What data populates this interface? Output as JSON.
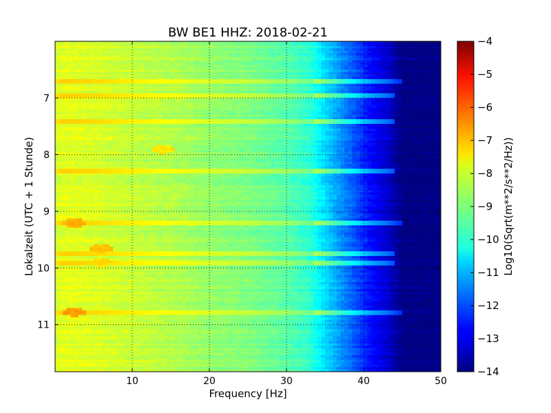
{
  "chart_data": {
    "type": "heatmap",
    "title": "BW BE1 HHZ: 2018-02-21",
    "xlabel": "Frequency [Hz]",
    "ylabel": "Lokalzeit (UTC + 1 Stunde)",
    "xlim": [
      0,
      50
    ],
    "ylim": [
      6.0,
      11.83
    ],
    "y_inverted": true,
    "x_ticks": [
      {
        "value": 10,
        "label": "10"
      },
      {
        "value": 20,
        "label": "20"
      },
      {
        "value": 30,
        "label": "30"
      },
      {
        "value": 40,
        "label": "40"
      },
      {
        "value": 50,
        "label": "50"
      }
    ],
    "y_ticks": [
      {
        "value": 7,
        "label": "7"
      },
      {
        "value": 8,
        "label": "8"
      },
      {
        "value": 9,
        "label": "9"
      },
      {
        "value": 10,
        "label": "10"
      },
      {
        "value": 11,
        "label": "11"
      }
    ],
    "grid": true,
    "colormap": "jet",
    "colorbar": {
      "label": "Log10(Sqrt(m**2/s**2/Hz))",
      "vmin": -14,
      "vmax": -4,
      "ticks": [
        {
          "value": -4,
          "label": "−4"
        },
        {
          "value": -5,
          "label": "−5"
        },
        {
          "value": -6,
          "label": "−6"
        },
        {
          "value": -7,
          "label": "−7"
        },
        {
          "value": -8,
          "label": "−8"
        },
        {
          "value": -9,
          "label": "−9"
        },
        {
          "value": -10,
          "label": "−10"
        },
        {
          "value": -11,
          "label": "−11"
        },
        {
          "value": -12,
          "label": "−12"
        },
        {
          "value": -13,
          "label": "−13"
        },
        {
          "value": -14,
          "label": "−14"
        }
      ]
    },
    "frequency_profile": [
      {
        "freq": 0,
        "value": -8.2
      },
      {
        "freq": 1,
        "value": -8.0
      },
      {
        "freq": 5,
        "value": -8.1
      },
      {
        "freq": 10,
        "value": -8.3
      },
      {
        "freq": 15,
        "value": -8.5
      },
      {
        "freq": 20,
        "value": -8.8
      },
      {
        "freq": 25,
        "value": -9.0
      },
      {
        "freq": 30,
        "value": -9.4
      },
      {
        "freq": 33,
        "value": -9.8
      },
      {
        "freq": 35,
        "value": -10.6
      },
      {
        "freq": 37,
        "value": -11.3
      },
      {
        "freq": 39,
        "value": -12.0
      },
      {
        "freq": 41,
        "value": -12.7
      },
      {
        "freq": 43,
        "value": -13.2
      },
      {
        "freq": 44,
        "value": -13.6
      },
      {
        "freq": 45,
        "value": -14.0
      },
      {
        "freq": 50,
        "value": -14.0
      }
    ],
    "bands": [
      {
        "time": 6.7,
        "value": -8.5,
        "fmax": 45
      },
      {
        "time": 6.95,
        "value": -8.7,
        "fmax": 44
      },
      {
        "time": 7.4,
        "value": -8.6,
        "fmax": 44
      },
      {
        "time": 8.3,
        "value": -8.3,
        "fmax": 44
      },
      {
        "time": 9.2,
        "value": -7.8,
        "fmax": 45
      },
      {
        "time": 9.75,
        "value": -8.4,
        "fmax": 44
      },
      {
        "time": 9.9,
        "value": -8.4,
        "fmax": 44
      },
      {
        "time": 10.78,
        "value": -8.0,
        "fmax": 45
      }
    ],
    "hotspots": [
      {
        "time": 9.65,
        "freq": 6,
        "value": -7.2
      },
      {
        "time": 9.9,
        "freq": 6,
        "value": -7.4
      },
      {
        "time": 10.78,
        "freq": 2.5,
        "value": -6.8
      },
      {
        "time": 9.2,
        "freq": 2.5,
        "value": -7.0
      },
      {
        "time": 7.9,
        "freq": 14,
        "value": -7.5
      }
    ]
  }
}
